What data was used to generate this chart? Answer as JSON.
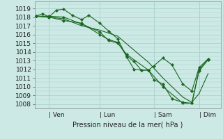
{
  "background_color": "#cce9e5",
  "grid_color": "#aad4cc",
  "line_color": "#1a6620",
  "marker_color": "#1a6620",
  "xlabel_text": "Pression niveau de la mer( hPa )",
  "ylim": [
    1007.5,
    1019.8
  ],
  "yticks": [
    1008,
    1009,
    1010,
    1011,
    1012,
    1013,
    1014,
    1015,
    1016,
    1017,
    1018,
    1019
  ],
  "xtick_labels": [
    "| Ven",
    "| Lun",
    "| Sam",
    "| Dim"
  ],
  "xtick_positions": [
    0.7,
    3.5,
    6.5,
    9.0
  ],
  "xlim": [
    -0.1,
    10.2
  ],
  "figsize": [
    3.2,
    2.0
  ],
  "dpi": 100,
  "series": [
    {
      "x": [
        0.0,
        0.35,
        0.7,
        1.1,
        1.5,
        2.0,
        2.5,
        2.9,
        3.5,
        4.0,
        4.5,
        5.0,
        5.4,
        5.8,
        6.2,
        6.5,
        7.0,
        7.5,
        8.1,
        8.6,
        9.0,
        9.5
      ],
      "y": [
        1018.1,
        1018.4,
        1018.0,
        1018.8,
        1018.9,
        1018.2,
        1017.7,
        1018.2,
        1017.3,
        1016.4,
        1015.5,
        1013.4,
        1012.0,
        1011.9,
        1011.9,
        1012.4,
        1013.3,
        1012.5,
        1010.3,
        1009.5,
        1012.2,
        1013.2
      ],
      "has_markers": true
    },
    {
      "x": [
        0.0,
        0.7,
        1.5,
        2.5,
        3.5,
        4.5,
        5.4,
        6.2,
        7.0,
        8.1,
        8.6,
        9.0,
        9.5
      ],
      "y": [
        1018.1,
        1018.0,
        1017.8,
        1017.0,
        1016.5,
        1015.8,
        1014.2,
        1012.8,
        1011.0,
        1008.8,
        1008.2,
        1009.2,
        1011.5
      ],
      "has_markers": false
    },
    {
      "x": [
        0.0,
        0.7,
        1.5,
        2.5,
        3.5,
        4.0,
        4.5,
        5.0,
        5.4,
        5.8,
        6.2,
        6.5,
        7.0,
        7.5,
        8.1,
        8.6,
        9.0,
        9.5
      ],
      "y": [
        1018.1,
        1018.0,
        1017.6,
        1017.3,
        1016.0,
        1015.4,
        1015.1,
        1013.5,
        1012.9,
        1011.9,
        1011.9,
        1010.8,
        1010.3,
        1008.6,
        1008.2,
        1008.1,
        1011.8,
        1013.1
      ],
      "has_markers": true
    },
    {
      "x": [
        0.0,
        0.7,
        1.5,
        2.5,
        3.5,
        4.0,
        4.5,
        5.0,
        6.2,
        7.0,
        8.1,
        8.6,
        9.0,
        9.5
      ],
      "y": [
        1018.1,
        1018.1,
        1018.0,
        1017.2,
        1016.3,
        1015.3,
        1015.0,
        1013.7,
        1011.9,
        1010.0,
        1008.1,
        1008.1,
        1012.0,
        1013.1
      ],
      "has_markers": true
    }
  ]
}
